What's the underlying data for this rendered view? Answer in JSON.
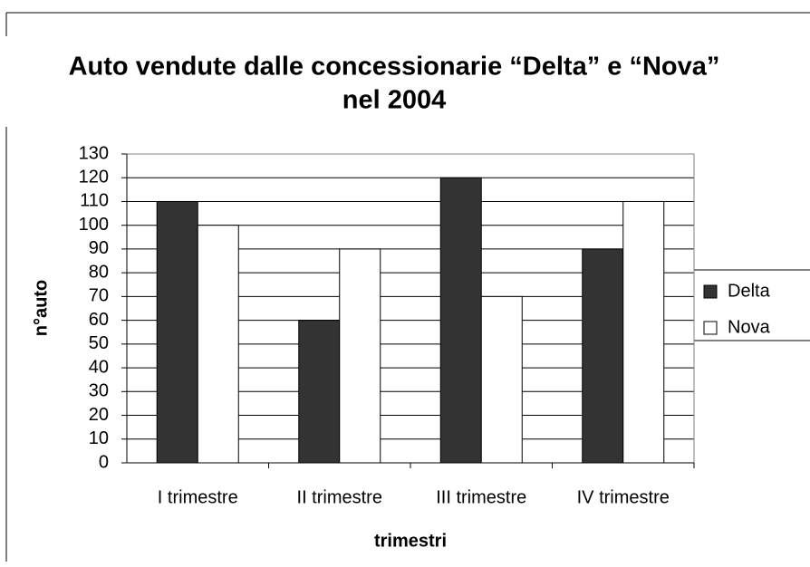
{
  "chart_data": {
    "type": "bar",
    "title": [
      "Auto vendute dalle concessionarie “Delta” e “Nova”",
      "nel 2004"
    ],
    "x_label": "trimestri",
    "y_label": "n°auto",
    "categories": [
      "I trimestre",
      "II trimestre",
      "III trimestre",
      "IV trimestre"
    ],
    "series": [
      {
        "name": "Delta",
        "color": "#333333",
        "values": [
          110,
          60,
          120,
          90
        ]
      },
      {
        "name": "Nova",
        "color": "#ffffff",
        "values": [
          100,
          90,
          70,
          110
        ]
      }
    ],
    "ylim": [
      0,
      130
    ],
    "yticks": [
      0,
      10,
      20,
      30,
      40,
      50,
      60,
      70,
      80,
      90,
      100,
      110,
      120,
      130
    ],
    "grid": true,
    "legend": "right"
  }
}
